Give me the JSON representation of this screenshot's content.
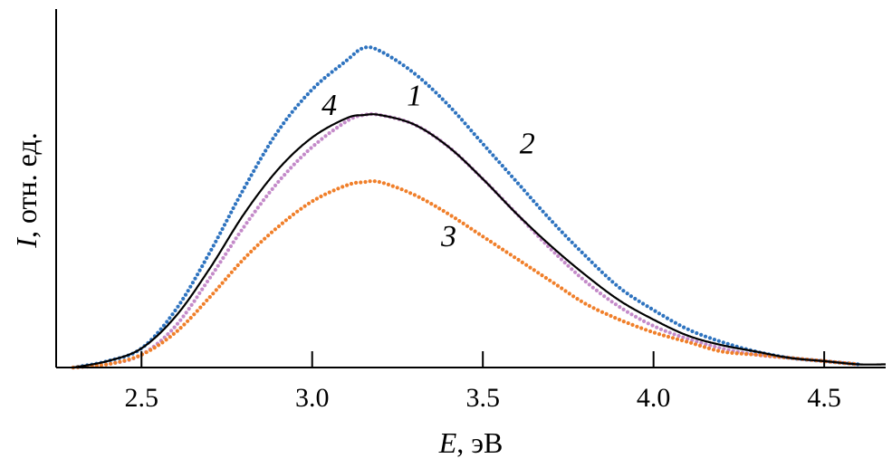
{
  "chart_data": {
    "type": "line",
    "xlabel_var": "E",
    "xlabel_unit": ", эВ",
    "ylabel_var": "I",
    "ylabel_unit": ", отн. ед.",
    "xlim": [
      2.25,
      4.68
    ],
    "ylim": [
      0,
      1.0
    ],
    "xticks": [
      2.5,
      3.0,
      3.5,
      4.0,
      4.5
    ],
    "xtick_labels": [
      "2.5",
      "3.0",
      "3.5",
      "4.0",
      "4.5"
    ],
    "grid": false,
    "series": [
      {
        "name": "1",
        "style": "dotted",
        "color": "#c48ac9",
        "x": [
          2.3,
          2.4,
          2.5,
          2.6,
          2.7,
          2.8,
          2.9,
          3.0,
          3.1,
          3.15,
          3.2,
          3.3,
          3.4,
          3.5,
          3.6,
          3.7,
          3.8,
          3.9,
          4.0,
          4.1,
          4.2,
          4.3,
          4.4,
          4.5,
          4.6
        ],
        "values": [
          0.0,
          0.01,
          0.04,
          0.13,
          0.28,
          0.44,
          0.58,
          0.69,
          0.77,
          0.79,
          0.79,
          0.76,
          0.69,
          0.59,
          0.48,
          0.37,
          0.27,
          0.19,
          0.13,
          0.09,
          0.06,
          0.04,
          0.03,
          0.02,
          0.01
        ]
      },
      {
        "name": "2",
        "style": "dotted",
        "color": "#2e73bf",
        "x": [
          2.3,
          2.4,
          2.5,
          2.6,
          2.7,
          2.8,
          2.9,
          3.0,
          3.1,
          3.15,
          3.2,
          3.3,
          3.4,
          3.5,
          3.6,
          3.7,
          3.8,
          3.9,
          4.0,
          4.1,
          4.2,
          4.3,
          4.4,
          4.5,
          4.6
        ],
        "values": [
          0.0,
          0.02,
          0.06,
          0.18,
          0.36,
          0.56,
          0.74,
          0.87,
          0.96,
          1.0,
          0.99,
          0.92,
          0.82,
          0.7,
          0.58,
          0.46,
          0.35,
          0.25,
          0.18,
          0.12,
          0.08,
          0.05,
          0.03,
          0.02,
          0.01
        ]
      },
      {
        "name": "3",
        "style": "dotted",
        "color": "#f07f2a",
        "x": [
          2.3,
          2.4,
          2.5,
          2.6,
          2.7,
          2.8,
          2.9,
          3.0,
          3.1,
          3.15,
          3.2,
          3.3,
          3.4,
          3.5,
          3.6,
          3.7,
          3.8,
          3.9,
          4.0,
          4.1,
          4.2,
          4.3,
          4.4,
          4.5,
          4.6
        ],
        "values": [
          0.0,
          0.01,
          0.04,
          0.11,
          0.22,
          0.34,
          0.44,
          0.52,
          0.57,
          0.58,
          0.58,
          0.54,
          0.48,
          0.41,
          0.34,
          0.27,
          0.2,
          0.15,
          0.11,
          0.08,
          0.05,
          0.04,
          0.03,
          0.02,
          0.01
        ]
      },
      {
        "name": "4",
        "style": "solid",
        "color": "#000000",
        "x": [
          2.3,
          2.4,
          2.5,
          2.6,
          2.7,
          2.8,
          2.9,
          3.0,
          3.1,
          3.15,
          3.2,
          3.3,
          3.4,
          3.5,
          3.6,
          3.7,
          3.8,
          3.9,
          4.0,
          4.1,
          4.2,
          4.3,
          4.4,
          4.5,
          4.6,
          4.68
        ],
        "values": [
          0.0,
          0.02,
          0.06,
          0.16,
          0.31,
          0.48,
          0.62,
          0.72,
          0.78,
          0.79,
          0.79,
          0.76,
          0.69,
          0.59,
          0.48,
          0.38,
          0.29,
          0.21,
          0.15,
          0.1,
          0.07,
          0.05,
          0.03,
          0.02,
          0.01,
          0.01
        ]
      }
    ],
    "curve_labels": [
      {
        "text": "1",
        "series": "1",
        "at_x": 3.3,
        "at_y": 0.82
      },
      {
        "text": "2",
        "series": "2",
        "at_x": 3.63,
        "at_y": 0.67
      },
      {
        "text": "3",
        "series": "3",
        "at_x": 3.4,
        "at_y": 0.38
      },
      {
        "text": "4",
        "series": "4",
        "at_x": 3.05,
        "at_y": 0.79
      }
    ]
  }
}
